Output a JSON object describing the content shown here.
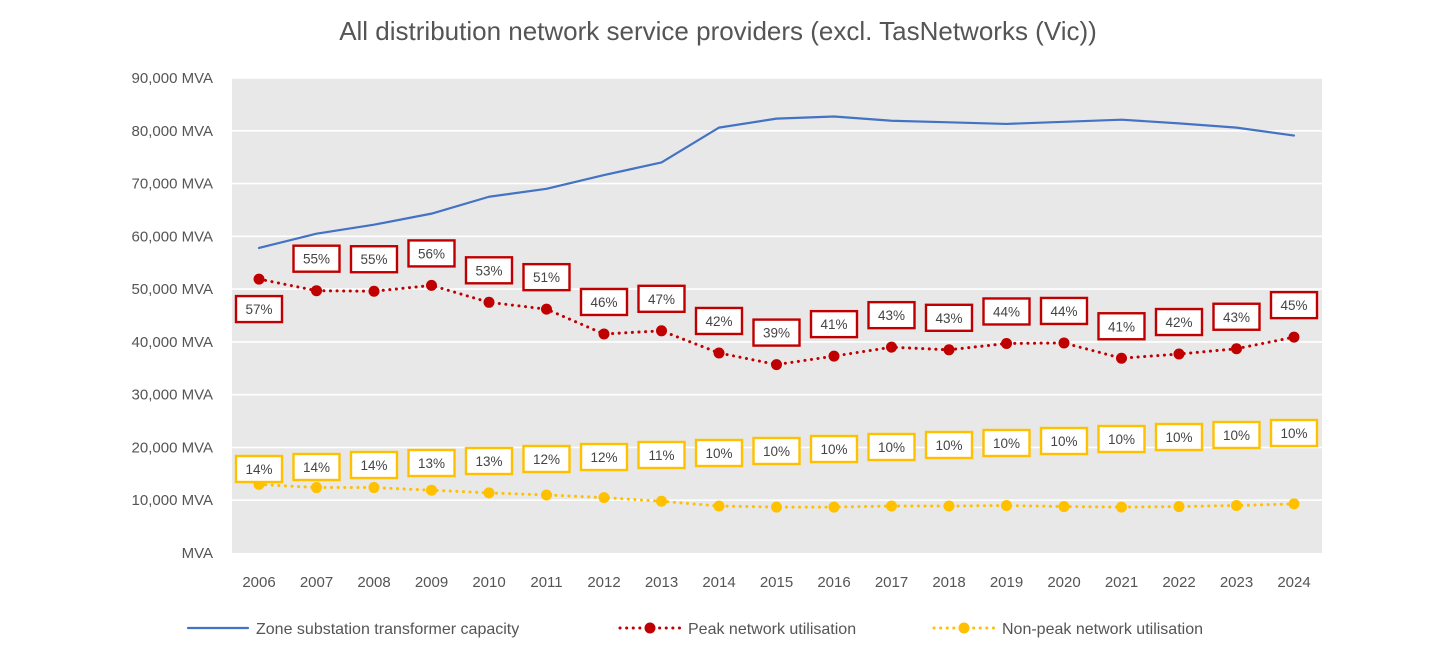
{
  "chart_data": {
    "type": "line",
    "title": "All distribution network service providers (excl. TasNetworks (Vic))",
    "xlabel": "",
    "ylabel": "",
    "x": [
      "2006",
      "2007",
      "2008",
      "2009",
      "2010",
      "2011",
      "2012",
      "2013",
      "2014",
      "2015",
      "2016",
      "2017",
      "2018",
      "2019",
      "2020",
      "2021",
      "2022",
      "2023",
      "2024"
    ],
    "ylim": [
      0,
      90000
    ],
    "y_ticks": [
      0,
      10000,
      20000,
      30000,
      40000,
      50000,
      60000,
      70000,
      80000,
      90000
    ],
    "y_tick_labels": [
      "MVA",
      "10,000 MVA",
      "20,000 MVA",
      "30,000 MVA",
      "40,000 MVA",
      "50,000 MVA",
      "60,000 MVA",
      "70,000 MVA",
      "80,000 MVA",
      "90,000 MVA"
    ],
    "grid": true,
    "legend_position": "bottom",
    "series": [
      {
        "name": "Zone substation transformer capacity",
        "color": "#4472c4",
        "style": "solid",
        "values": [
          57800,
          60500,
          62200,
          64300,
          67500,
          69000,
          71600,
          74000,
          80600,
          82300,
          82700,
          81900,
          81600,
          81300,
          81700,
          82100,
          81400,
          80600,
          79100
        ]
      },
      {
        "name": "Peak network utilisation",
        "color": "#c00000",
        "style": "dotted",
        "values": [
          51900,
          49700,
          49600,
          50700,
          47500,
          46200,
          41500,
          42100,
          37900,
          35700,
          37300,
          39000,
          38500,
          39700,
          39800,
          36900,
          37700,
          38700,
          40900
        ],
        "data_labels": [
          "57%",
          "55%",
          "55%",
          "56%",
          "53%",
          "51%",
          "46%",
          "47%",
          "42%",
          "39%",
          "41%",
          "43%",
          "43%",
          "44%",
          "44%",
          "41%",
          "42%",
          "43%",
          "45%"
        ]
      },
      {
        "name": "Non-peak network utilisation",
        "color": "#ffc000",
        "style": "dotted",
        "values": [
          13000,
          12400,
          12400,
          11900,
          11400,
          11000,
          10500,
          9800,
          8900,
          8700,
          8700,
          8900,
          8900,
          9000,
          8800,
          8700,
          8800,
          9000,
          9300
        ],
        "data_labels": [
          "14%",
          "14%",
          "14%",
          "13%",
          "13%",
          "12%",
          "12%",
          "11%",
          "10%",
          "10%",
          "10%",
          "10%",
          "10%",
          "10%",
          "10%",
          "10%",
          "10%",
          "10%",
          "10%"
        ]
      }
    ]
  }
}
